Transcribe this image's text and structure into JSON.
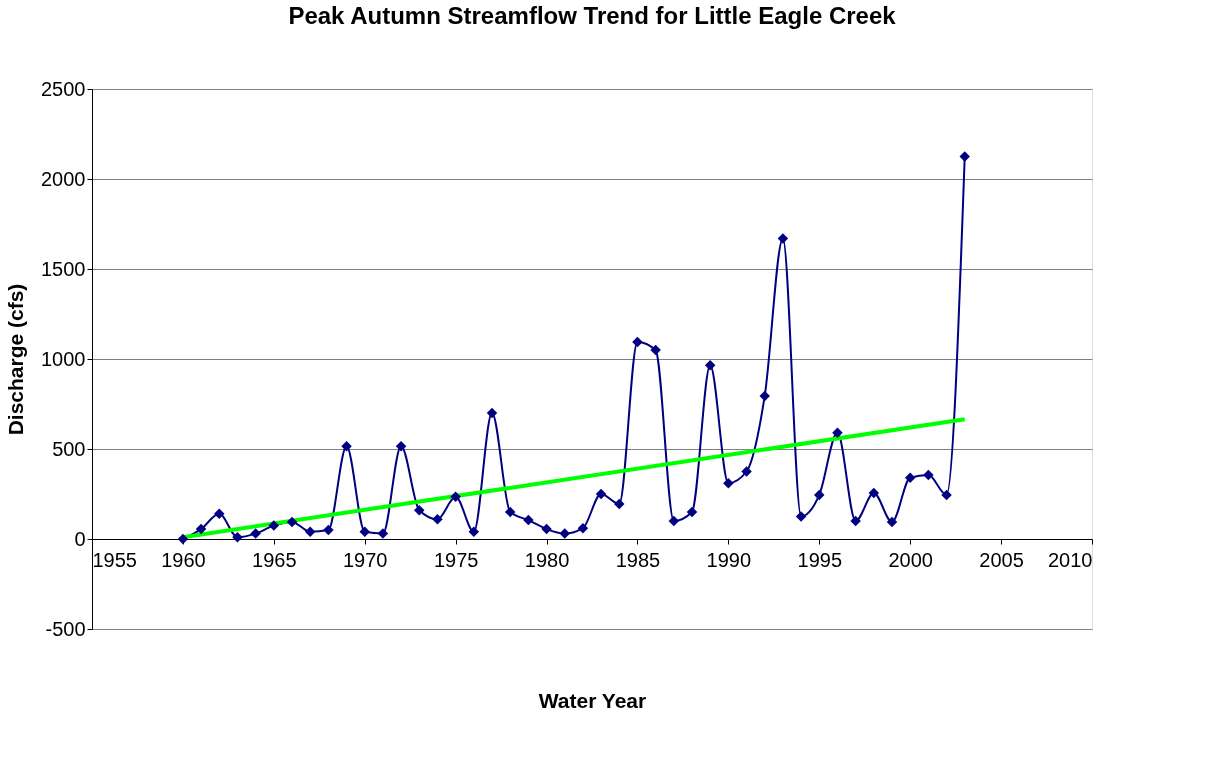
{
  "chart_data": {
    "type": "line",
    "title": "Peak Autumn Streamflow Trend for Little Eagle Creek",
    "xlabel": "Water Year",
    "ylabel": "Discharge (cfs)",
    "x": [
      1960,
      1961,
      1962,
      1963,
      1964,
      1965,
      1966,
      1967,
      1968,
      1969,
      1970,
      1971,
      1972,
      1973,
      1974,
      1975,
      1976,
      1977,
      1978,
      1979,
      1980,
      1981,
      1982,
      1983,
      1984,
      1985,
      1986,
      1987,
      1988,
      1989,
      1990,
      1991,
      1992,
      1993,
      1994,
      1995,
      1996,
      1997,
      1998,
      1999,
      2000,
      2001,
      2002,
      2003
    ],
    "series": [
      {
        "color": "#000080",
        "marker": "diamond",
        "values": [
          0,
          55,
          140,
          10,
          30,
          75,
          95,
          40,
          50,
          515,
          40,
          30,
          515,
          160,
          110,
          235,
          40,
          700,
          150,
          105,
          55,
          30,
          60,
          250,
          195,
          1095,
          1050,
          100,
          150,
          965,
          310,
          375,
          795,
          1670,
          125,
          245,
          590,
          100,
          255,
          95,
          340,
          355,
          245,
          2125
        ]
      },
      {
        "type": "line",
        "color": "#00ff00",
        "marker": "none",
        "x": [
          1960,
          2003
        ],
        "values": [
          10,
          665
        ]
      }
    ],
    "xlim": [
      1955,
      2010
    ],
    "xticks": [
      1955,
      1960,
      1965,
      1970,
      1975,
      1980,
      1985,
      1990,
      1995,
      2000,
      2005,
      2010
    ],
    "ylim": [
      -500,
      2500
    ],
    "yticks": [
      -500,
      0,
      500,
      1000,
      1500,
      2000,
      2500
    ],
    "grid": "y"
  }
}
